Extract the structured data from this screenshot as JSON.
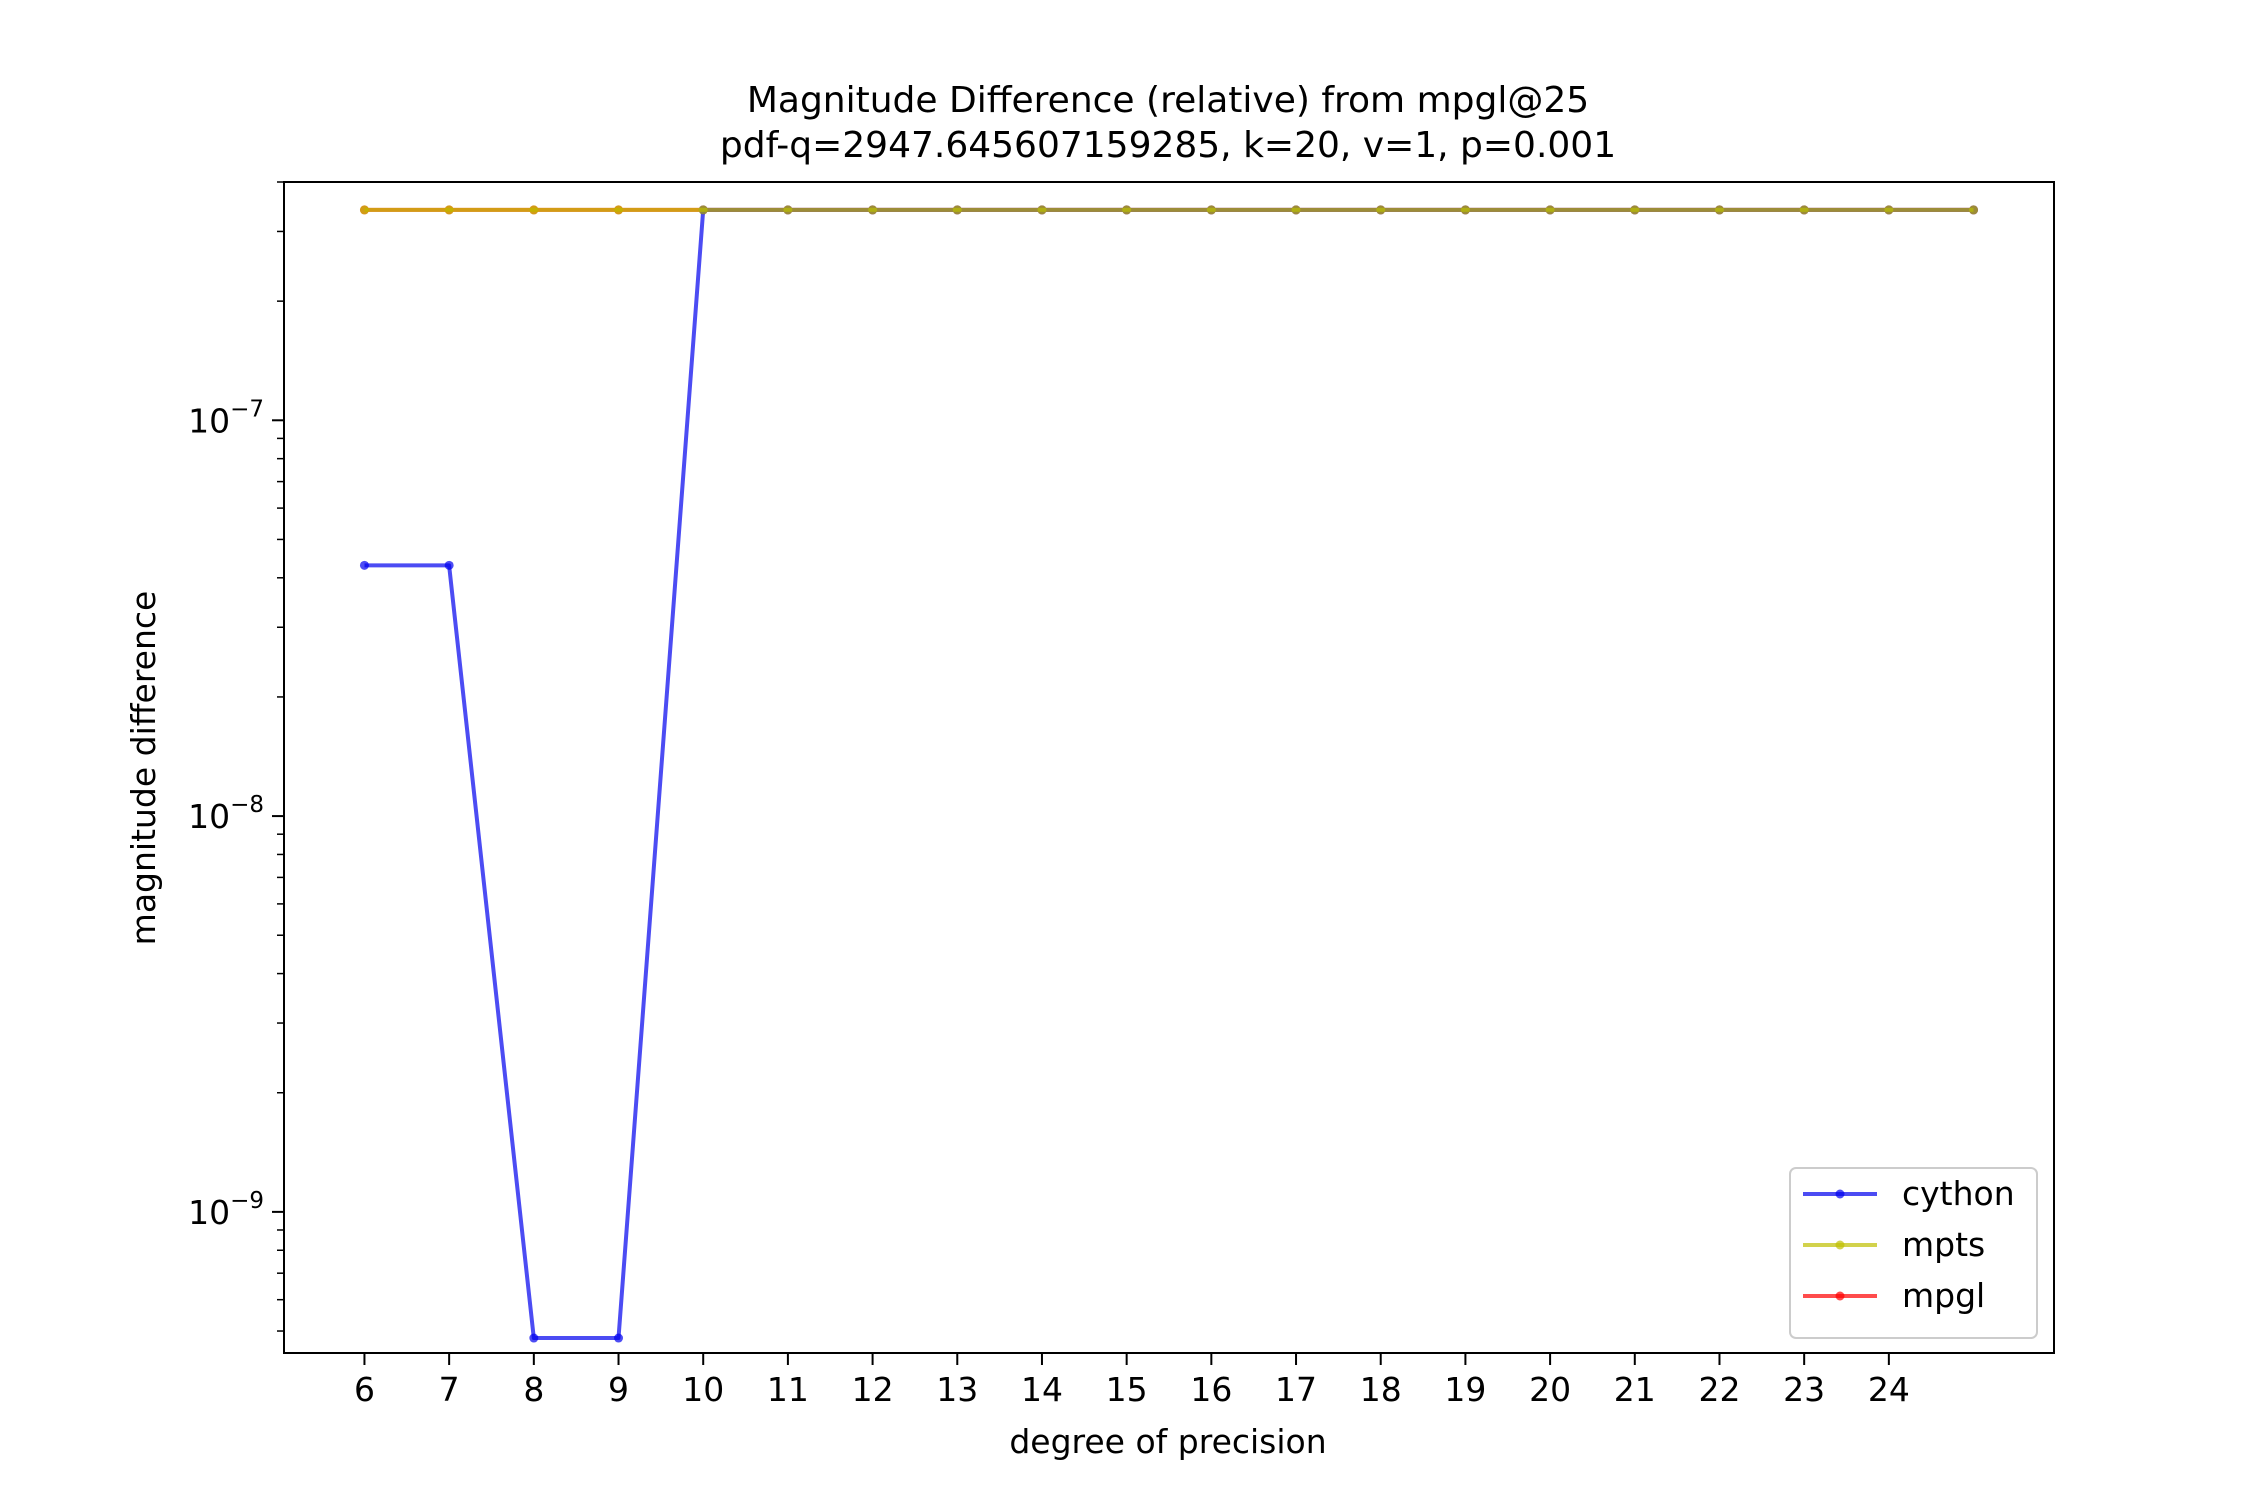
{
  "chart_data": {
    "type": "line",
    "title": "Magnitude Difference (relative) from mpgl@25",
    "subtitle": "pdf-q=2947.645607159285, k=20, v=1, p=0.001",
    "xlabel": "degree of precision",
    "ylabel": "magnitude difference",
    "y_scale": "log",
    "ylim": [
      4.4e-10,
      4e-07
    ],
    "xlim": [
      5.05,
      25.95
    ],
    "grid": false,
    "legend_position": "lower right",
    "x_ticks": [
      6,
      7,
      8,
      9,
      10,
      11,
      12,
      13,
      14,
      15,
      16,
      17,
      18,
      19,
      20,
      21,
      22,
      23,
      24
    ],
    "x_tick_labels": [
      "6",
      "7",
      "8",
      "9",
      "10",
      "11",
      "12",
      "13",
      "14",
      "15",
      "16",
      "17",
      "18",
      "19",
      "20",
      "21",
      "22",
      "23",
      "24"
    ],
    "y_ticks": [
      1e-09,
      1e-08,
      1e-07
    ],
    "y_tick_labels": [
      {
        "base": "10",
        "exp": "−9"
      },
      {
        "base": "10",
        "exp": "−8"
      },
      {
        "base": "10",
        "exp": "−7"
      }
    ],
    "x": [
      6,
      7,
      8,
      9,
      10,
      11,
      12,
      13,
      14,
      15,
      16,
      17,
      18,
      19,
      20,
      21,
      22,
      23,
      24,
      25
    ],
    "series": [
      {
        "name": "cython",
        "color": "#0000ee",
        "values": [
          4.3e-08,
          4.3e-08,
          4.8e-10,
          4.8e-10,
          3.4e-07,
          3.4e-07,
          3.4e-07,
          3.4e-07,
          3.4e-07,
          3.4e-07,
          3.4e-07,
          3.4e-07,
          3.4e-07,
          3.4e-07,
          3.4e-07,
          3.4e-07,
          3.4e-07,
          3.4e-07,
          3.4e-07,
          3.4e-07
        ]
      },
      {
        "name": "mpts",
        "color": "#bfbf00",
        "values": [
          3.4e-07,
          3.4e-07,
          3.4e-07,
          3.4e-07,
          3.4e-07,
          3.4e-07,
          3.4e-07,
          3.4e-07,
          3.4e-07,
          3.4e-07,
          3.4e-07,
          3.4e-07,
          3.4e-07,
          3.4e-07,
          3.4e-07,
          3.4e-07,
          3.4e-07,
          3.4e-07,
          3.4e-07,
          3.4e-07
        ]
      },
      {
        "name": "mpgl",
        "color": "#ff0000",
        "values": [
          3.4e-07,
          3.4e-07,
          3.4e-07,
          3.4e-07,
          3.4e-07,
          3.4e-07,
          3.4e-07,
          3.4e-07,
          3.4e-07,
          3.4e-07,
          3.4e-07,
          3.4e-07,
          3.4e-07,
          3.4e-07,
          3.4e-07,
          3.4e-07,
          3.4e-07,
          3.4e-07,
          3.4e-07,
          3.4e-07
        ]
      }
    ],
    "series_draw_order": [
      "mpgl",
      "cython",
      "mpts"
    ]
  }
}
